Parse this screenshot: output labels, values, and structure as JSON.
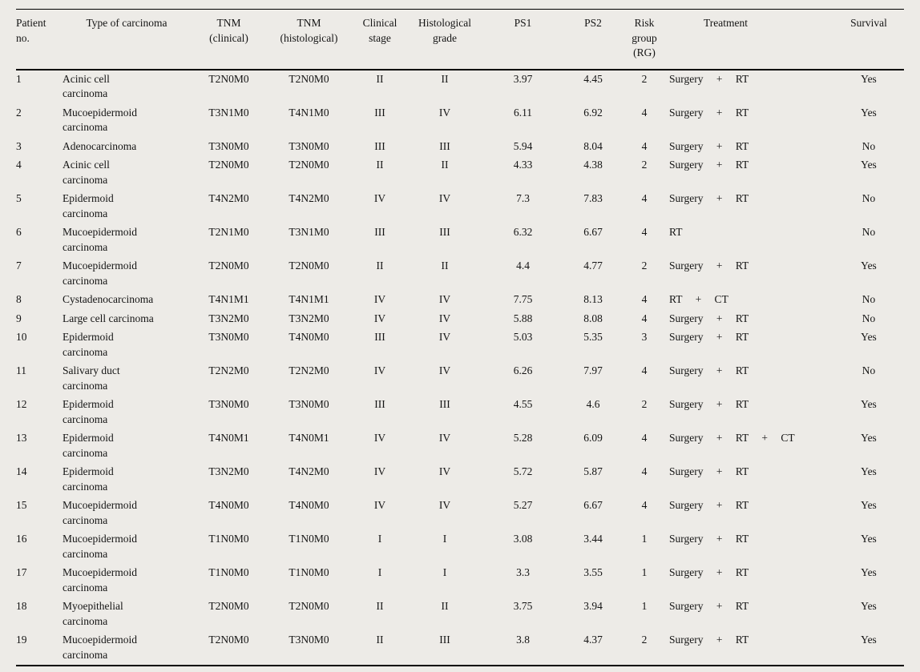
{
  "colors": {
    "background": "#edebe7",
    "text": "#141414",
    "rule": "#000000"
  },
  "table": {
    "columns": [
      {
        "id": "patient-no",
        "lines": [
          "Patient",
          "no."
        ]
      },
      {
        "id": "carcinoma-type",
        "lines": [
          "Type of carcinoma"
        ]
      },
      {
        "id": "tnm-clinical",
        "lines": [
          "TNM",
          "(clinical)"
        ]
      },
      {
        "id": "tnm-histological",
        "lines": [
          "TNM",
          "(histological)"
        ]
      },
      {
        "id": "clinical-stage",
        "lines": [
          "Clinical",
          "stage"
        ]
      },
      {
        "id": "histological-grade",
        "lines": [
          "Histological",
          "grade"
        ]
      },
      {
        "id": "ps1",
        "lines": [
          "PS1"
        ]
      },
      {
        "id": "ps2",
        "lines": [
          "PS2"
        ]
      },
      {
        "id": "risk-group",
        "lines": [
          "Risk",
          "group",
          "(RG)"
        ]
      },
      {
        "id": "treatment",
        "lines": [
          "Treatment"
        ]
      },
      {
        "id": "survival",
        "lines": [
          "Survival"
        ]
      }
    ],
    "rows": [
      {
        "no": "1",
        "type": [
          "Acinic cell",
          "carcinoma"
        ],
        "tnm_clinical": "T2N0M0",
        "tnm_histological": "T2N0M0",
        "stage": "II",
        "grade": "II",
        "ps1": "3.97",
        "ps2": "4.45",
        "rg": "2",
        "treatment": "Surgery + RT",
        "survival": "Yes"
      },
      {
        "no": "2",
        "type": [
          "Mucoepidermoid",
          "carcinoma"
        ],
        "tnm_clinical": "T3N1M0",
        "tnm_histological": "T4N1M0",
        "stage": "III",
        "grade": "IV",
        "ps1": "6.11",
        "ps2": "6.92",
        "rg": "4",
        "treatment": "Surgery + RT",
        "survival": "Yes"
      },
      {
        "no": "3",
        "type": [
          "Adenocarcinoma"
        ],
        "tnm_clinical": "T3N0M0",
        "tnm_histological": "T3N0M0",
        "stage": "III",
        "grade": "III",
        "ps1": "5.94",
        "ps2": "8.04",
        "rg": "4",
        "treatment": "Surgery + RT",
        "survival": "No"
      },
      {
        "no": "4",
        "type": [
          "Acinic cell",
          "carcinoma"
        ],
        "tnm_clinical": "T2N0M0",
        "tnm_histological": "T2N0M0",
        "stage": "II",
        "grade": "II",
        "ps1": "4.33",
        "ps2": "4.38",
        "rg": "2",
        "treatment": "Surgery + RT",
        "survival": "Yes"
      },
      {
        "no": "5",
        "type": [
          "Epidermoid",
          "carcinoma"
        ],
        "tnm_clinical": "T4N2M0",
        "tnm_histological": "T4N2M0",
        "stage": "IV",
        "grade": "IV",
        "ps1": "7.3",
        "ps2": "7.83",
        "rg": "4",
        "treatment": "Surgery + RT",
        "survival": "No"
      },
      {
        "no": "6",
        "type": [
          "Mucoepidermoid",
          "carcinoma"
        ],
        "tnm_clinical": "T2N1M0",
        "tnm_histological": "T3N1M0",
        "stage": "III",
        "grade": "III",
        "ps1": "6.32",
        "ps2": "6.67",
        "rg": "4",
        "treatment": "RT",
        "survival": "No"
      },
      {
        "no": "7",
        "type": [
          "Mucoepidermoid",
          "carcinoma"
        ],
        "tnm_clinical": "T2N0M0",
        "tnm_histological": "T2N0M0",
        "stage": "II",
        "grade": "II",
        "ps1": "4.4",
        "ps2": "4.77",
        "rg": "2",
        "treatment": "Surgery + RT",
        "survival": "Yes"
      },
      {
        "no": "8",
        "type": [
          "Cystadenocarcinoma"
        ],
        "tnm_clinical": "T4N1M1",
        "tnm_histological": "T4N1M1",
        "stage": "IV",
        "grade": "IV",
        "ps1": "7.75",
        "ps2": "8.13",
        "rg": "4",
        "treatment": "RT + CT",
        "survival": "No"
      },
      {
        "no": "9",
        "type": [
          "Large cell carcinoma"
        ],
        "tnm_clinical": "T3N2M0",
        "tnm_histological": "T3N2M0",
        "stage": "IV",
        "grade": "IV",
        "ps1": "5.88",
        "ps2": "8.08",
        "rg": "4",
        "treatment": "Surgery + RT",
        "survival": "No"
      },
      {
        "no": "10",
        "type": [
          "Epidermoid",
          "carcinoma"
        ],
        "tnm_clinical": "T3N0M0",
        "tnm_histological": "T4N0M0",
        "stage": "III",
        "grade": "IV",
        "ps1": "5.03",
        "ps2": "5.35",
        "rg": "3",
        "treatment": "Surgery + RT",
        "survival": "Yes"
      },
      {
        "no": "11",
        "type": [
          "Salivary duct",
          "carcinoma"
        ],
        "tnm_clinical": "T2N2M0",
        "tnm_histological": "T2N2M0",
        "stage": "IV",
        "grade": "IV",
        "ps1": "6.26",
        "ps2": "7.97",
        "rg": "4",
        "treatment": "Surgery + RT",
        "survival": "No"
      },
      {
        "no": "12",
        "type": [
          "Epidermoid",
          "carcinoma"
        ],
        "tnm_clinical": "T3N0M0",
        "tnm_histological": "T3N0M0",
        "stage": "III",
        "grade": "III",
        "ps1": "4.55",
        "ps2": "4.6",
        "rg": "2",
        "treatment": "Surgery + RT",
        "survival": "Yes"
      },
      {
        "no": "13",
        "type": [
          "Epidermoid",
          "carcinoma"
        ],
        "tnm_clinical": "T4N0M1",
        "tnm_histological": "T4N0M1",
        "stage": "IV",
        "grade": "IV",
        "ps1": "5.28",
        "ps2": "6.09",
        "rg": "4",
        "treatment": "Surgery + RT + CT",
        "survival": "Yes"
      },
      {
        "no": "14",
        "type": [
          "Epidermoid",
          "carcinoma"
        ],
        "tnm_clinical": "T3N2M0",
        "tnm_histological": "T4N2M0",
        "stage": "IV",
        "grade": "IV",
        "ps1": "5.72",
        "ps2": "5.87",
        "rg": "4",
        "treatment": "Surgery + RT",
        "survival": "Yes"
      },
      {
        "no": "15",
        "type": [
          "Mucoepidermoid",
          "carcinoma"
        ],
        "tnm_clinical": "T4N0M0",
        "tnm_histological": "T4N0M0",
        "stage": "IV",
        "grade": "IV",
        "ps1": "5.27",
        "ps2": "6.67",
        "rg": "4",
        "treatment": "Surgery + RT",
        "survival": "Yes"
      },
      {
        "no": "16",
        "type": [
          "Mucoepidermoid",
          "carcinoma"
        ],
        "tnm_clinical": "T1N0M0",
        "tnm_histological": "T1N0M0",
        "stage": "I",
        "grade": "I",
        "ps1": "3.08",
        "ps2": "3.44",
        "rg": "1",
        "treatment": "Surgery + RT",
        "survival": "Yes"
      },
      {
        "no": "17",
        "type": [
          "Mucoepidermoid",
          "carcinoma"
        ],
        "tnm_clinical": "T1N0M0",
        "tnm_histological": "T1N0M0",
        "stage": "I",
        "grade": "I",
        "ps1": "3.3",
        "ps2": "3.55",
        "rg": "1",
        "treatment": "Surgery + RT",
        "survival": "Yes"
      },
      {
        "no": "18",
        "type": [
          "Myoepithelial",
          "carcinoma"
        ],
        "tnm_clinical": "T2N0M0",
        "tnm_histological": "T2N0M0",
        "stage": "II",
        "grade": "II",
        "ps1": "3.75",
        "ps2": "3.94",
        "rg": "1",
        "treatment": "Surgery + RT",
        "survival": "Yes"
      },
      {
        "no": "19",
        "type": [
          "Mucoepidermoid",
          "carcinoma"
        ],
        "tnm_clinical": "T2N0M0",
        "tnm_histological": "T3N0M0",
        "stage": "II",
        "grade": "III",
        "ps1": "3.8",
        "ps2": "4.37",
        "rg": "2",
        "treatment": "Surgery + RT",
        "survival": "Yes"
      }
    ]
  }
}
